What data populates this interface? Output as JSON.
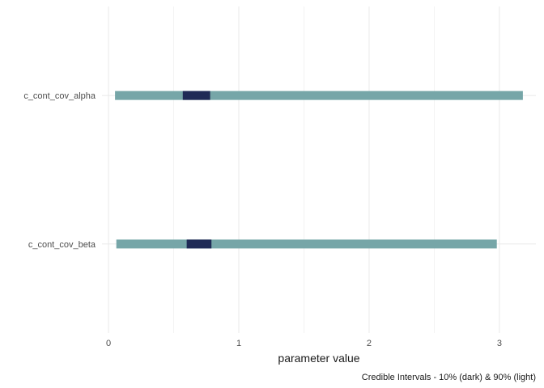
{
  "chart_data": {
    "type": "interval",
    "title": "",
    "xlabel": "parameter value",
    "ylabel": "",
    "caption": "Credible Intervals - 10% (dark) & 90% (light)",
    "xlim": [
      -0.05,
      3.28
    ],
    "x_ticks": [
      0,
      1,
      2,
      3
    ],
    "grid": true,
    "colors": {
      "outer": "#76a6a8",
      "inner": "#1f2a56",
      "grid": "#ebebeb"
    },
    "parameters": [
      {
        "name": "c_cont_cov_beta",
        "outer": [
          0.06,
          2.98
        ],
        "inner": [
          0.6,
          0.79
        ]
      },
      {
        "name": "c_cont_cov_alpha",
        "outer": [
          0.05,
          3.18
        ],
        "inner": [
          0.57,
          0.78
        ]
      }
    ]
  }
}
